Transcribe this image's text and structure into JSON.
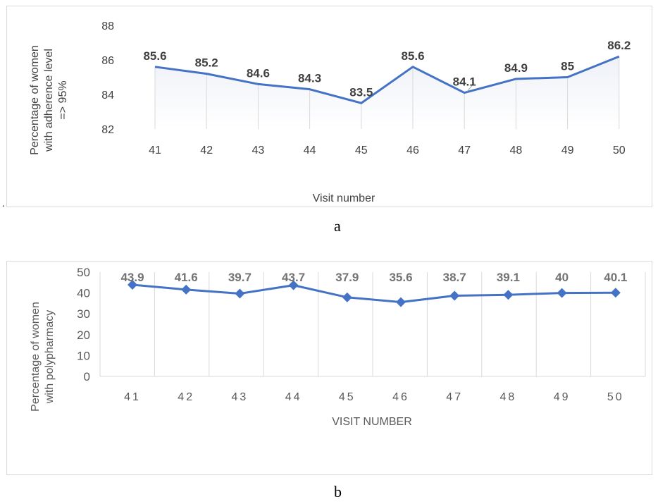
{
  "figure": {
    "stray_mark": ".",
    "panel_labels": [
      "a",
      "b"
    ]
  },
  "colors": {
    "series": "#4472c4",
    "label_dark": "#404040",
    "label_gray": "#737373",
    "grid": "#d9d9d9",
    "axis_text": "#595959"
  },
  "chart_data": [
    {
      "type": "line",
      "categories": [
        "41",
        "42",
        "43",
        "44",
        "45",
        "46",
        "47",
        "48",
        "49",
        "50"
      ],
      "series": [
        {
          "values": [
            85.6,
            85.2,
            84.6,
            84.3,
            83.5,
            85.6,
            84.1,
            84.9,
            85,
            86.2
          ]
        }
      ],
      "data_labels": [
        "85.6",
        "85.2",
        "84.6",
        "84.3",
        "83.5",
        "85.6",
        "84.1",
        "84.9",
        "85",
        "86.2"
      ],
      "yticks": [
        "82",
        "84",
        "86",
        "88"
      ],
      "ylim": [
        82,
        88
      ],
      "xlabel": "Visit number",
      "ylabel_lines": [
        "Percentage of women",
        "with adherence level",
        "=> 95%"
      ],
      "marker": "none",
      "grid": "vertical drop lines"
    },
    {
      "type": "line",
      "categories": [
        "41",
        "42",
        "43",
        "44",
        "45",
        "46",
        "47",
        "48",
        "49",
        "50"
      ],
      "series": [
        {
          "values": [
            43.9,
            41.6,
            39.7,
            43.7,
            37.9,
            35.6,
            38.7,
            39.1,
            40,
            40.1
          ]
        }
      ],
      "data_labels": [
        "43.9",
        "41.6",
        "39.7",
        "43.7",
        "37.9",
        "35.6",
        "38.7",
        "39.1",
        "40",
        "40.1"
      ],
      "yticks": [
        "0",
        "10",
        "20",
        "30",
        "40",
        "50"
      ],
      "ylim": [
        0,
        50
      ],
      "xlabel": "VISIT NUMBER",
      "ylabel_lines": [
        "Percentage of women",
        "with polypharmacy"
      ],
      "marker": "diamond",
      "grid": "vertical lines"
    }
  ]
}
